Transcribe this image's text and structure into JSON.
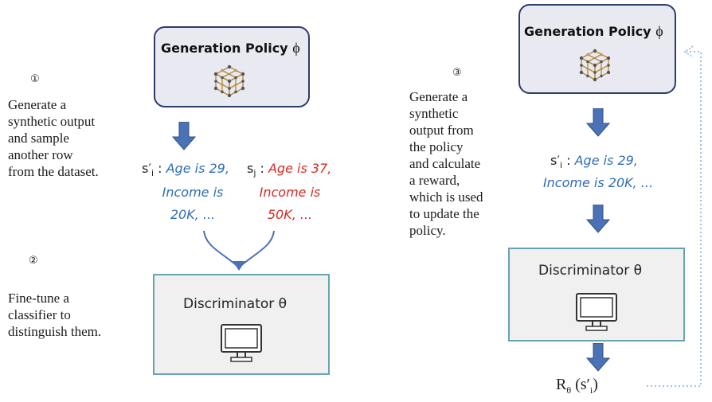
{
  "left": {
    "step1": {
      "number": "①",
      "text": "Generate a\nsynthetic output\nand sample\nanother row\nfrom the dataset."
    },
    "step2": {
      "number": "②",
      "text": "Fine-tune a\nclassifier to\ndistinguish them."
    },
    "policy": {
      "title": "Generation Policy",
      "symbol": "ϕ"
    },
    "sample_i": {
      "label": "s′",
      "sub": "i",
      "sep": " : ",
      "line1": "Age is 29,",
      "line2": "Income is",
      "line3": "20K, ..."
    },
    "sample_j": {
      "label": "s",
      "sub": "j",
      "sep": " : ",
      "line1": "Age is 37,",
      "line2": "Income is",
      "line3": "50K, ..."
    },
    "discriminator": {
      "title": "Discriminator θ"
    }
  },
  "right": {
    "step3": {
      "number": "③",
      "text": "Generate a\nsynthetic\noutput from\nthe policy\nand calculate\na reward,\nwhich is used\nto update the\npolicy."
    },
    "policy": {
      "title": "Generation Policy",
      "symbol": "ϕ"
    },
    "sample_i": {
      "label": "s′",
      "sub": "i",
      "sep": " : ",
      "line1": "Age is 29,",
      "line2": "Income is 20K, ..."
    },
    "discriminator": {
      "title": "Discriminator θ"
    },
    "reward": {
      "R": "R",
      "theta": "θ",
      "arg": "(s′",
      "sub": "i",
      "close": ")"
    }
  },
  "colors": {
    "arrow": "#4a72b4",
    "policy_border": "#2e3b6b",
    "policy_fill": "#e9e9f1",
    "disc_border": "#6aa3b0",
    "disc_fill": "#f0f0f0",
    "blue_text": "#2f6db5",
    "red_text": "#d42b22",
    "feedback_line": "#9cc3e6"
  },
  "icons": [
    "network-cube-icon",
    "monitor-icon",
    "down-arrow-icon",
    "merge-arrow-icon",
    "feedback-loop-arrow"
  ]
}
